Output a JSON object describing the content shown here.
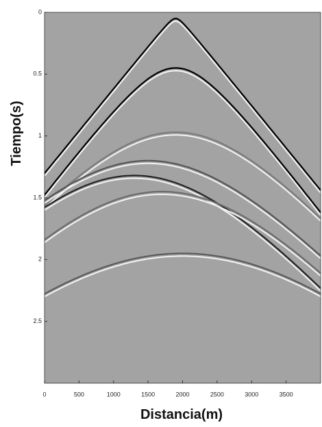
{
  "chart_data": {
    "type": "seismic",
    "xlabel": "Distancia(m)",
    "ylabel": "Tiempo(s)",
    "xlim": [
      0,
      4000
    ],
    "xticks": [
      0,
      500,
      1000,
      1500,
      2000,
      2500,
      3000,
      3500
    ],
    "ylim": [
      0,
      3
    ],
    "yticks": [
      0,
      0.5,
      1,
      1.5,
      2,
      2.5
    ],
    "y_inverted": true,
    "background": "#a3a3a3",
    "reflections": [
      {
        "x0": 1900,
        "t0": 0.05,
        "velocity": 1460,
        "color": "#000000"
      },
      {
        "x0": 1900,
        "t0": 0.45,
        "velocity": 1350,
        "color": "#000000"
      },
      {
        "x0": 1900,
        "t0": 0.97,
        "velocity": 1550,
        "color": "#7a7a7a"
      },
      {
        "x0": 1500,
        "t0": 1.2,
        "velocity": 1600,
        "color": "#555555"
      },
      {
        "x0": 1300,
        "t0": 1.32,
        "velocity": 1500,
        "color": "#222222"
      },
      {
        "x0": 1700,
        "t0": 1.45,
        "velocity": 1500,
        "color": "#6a6a6a"
      },
      {
        "x0": 2000,
        "t0": 1.95,
        "velocity": 1700,
        "color": "#5a5a5a"
      }
    ]
  }
}
